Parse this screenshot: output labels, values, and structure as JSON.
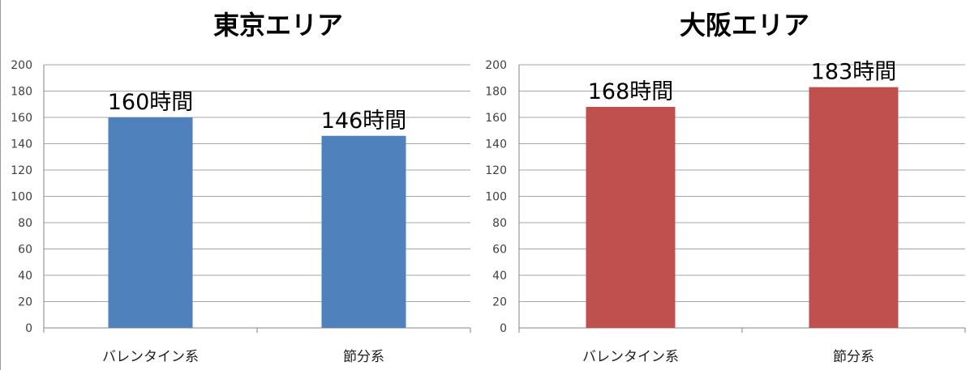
{
  "chart_data": [
    {
      "type": "bar",
      "title": "東京エリア",
      "categories": [
        "バレンタイン系",
        "節分系"
      ],
      "values": [
        160,
        146
      ],
      "data_labels": [
        "160時間",
        "146時間"
      ],
      "yticks": [
        "0",
        "20",
        "40",
        "60",
        "80",
        "100",
        "120",
        "140",
        "160",
        "180",
        "200"
      ],
      "ylim": [
        0,
        200
      ],
      "xlabel": "",
      "ylabel": "",
      "grid": true,
      "legend": "none",
      "bar_color": "#4f81bd"
    },
    {
      "type": "bar",
      "title": "大阪エリア",
      "categories": [
        "バレンタイン系",
        "節分系"
      ],
      "values": [
        168,
        183
      ],
      "data_labels": [
        "168時間",
        "183時間"
      ],
      "yticks": [
        "0",
        "20",
        "40",
        "60",
        "80",
        "100",
        "120",
        "140",
        "160",
        "180",
        "200"
      ],
      "ylim": [
        0,
        200
      ],
      "xlabel": "",
      "ylabel": "",
      "grid": true,
      "legend": "none",
      "bar_color": "#c0504d"
    }
  ]
}
